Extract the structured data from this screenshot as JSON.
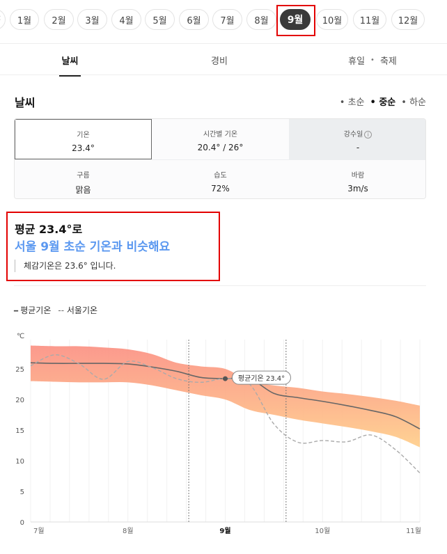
{
  "months": {
    "items": [
      "1월",
      "2월",
      "3월",
      "4월",
      "5월",
      "6월",
      "7월",
      "8월",
      "9월",
      "10월",
      "11월",
      "12월"
    ],
    "selected_index": 8,
    "prev_icon": "chevron-left-icon"
  },
  "tabs": {
    "weather": "날씨",
    "cost": "경비",
    "holiday": "휴일",
    "separator": "•",
    "festival": "축제"
  },
  "section": {
    "title": "날씨",
    "periods": [
      "• 초순",
      "• 중순",
      "• 하순"
    ],
    "selected_period": 1
  },
  "stats": {
    "temp": {
      "label": "기온",
      "value": "23.4°"
    },
    "hourly": {
      "label": "시간별 기온",
      "value": "20.4° / 26°"
    },
    "rain": {
      "label": "강수일",
      "value": "-"
    },
    "cloud": {
      "label": "구름",
      "value": "맑음"
    },
    "humidity": {
      "label": "습도",
      "value": "72%"
    },
    "wind": {
      "label": "바람",
      "value": "3m/s"
    }
  },
  "summary": {
    "headline": "평균 23.4°로",
    "comparison": "서울 9월 초순 기온과 비슷해요",
    "feels_like": "체감기온은 23.6° 입니다."
  },
  "legend": {
    "average": "평균기온",
    "seoul": "서울기온"
  },
  "chart_data": {
    "type": "line",
    "ylabel": "℃",
    "ylim": [
      0,
      30
    ],
    "yticks": [
      0,
      5,
      10,
      15,
      20,
      25
    ],
    "x_tick_labels": [
      "7월",
      "8월",
      "9월",
      "10월",
      "11월"
    ],
    "x": [
      0,
      0.5,
      1,
      1.5,
      2,
      2.5,
      3,
      3.5,
      4,
      4.5,
      5,
      5.5,
      6,
      6.5,
      7,
      7.5,
      8
    ],
    "series": [
      {
        "name": "평균기온",
        "style": "solid",
        "color": "#666666",
        "values": [
          26,
          25.9,
          25.9,
          25.9,
          25.8,
          25.3,
          24.6,
          23.6,
          23.4,
          23.4,
          21,
          20.3,
          19.7,
          19,
          18.2,
          17.2,
          15.2
        ]
      },
      {
        "name": "서울기온",
        "style": "dashed",
        "color": "#aaaaaa",
        "values": [
          25.5,
          27.3,
          25.8,
          23.3,
          26.2,
          25.2,
          23.4,
          22.8,
          23.4,
          22.5,
          16,
          13,
          13.3,
          13.1,
          14.2,
          11.8,
          8
        ]
      },
      {
        "name": "최고기온",
        "style": "band-upper",
        "values": [
          28.8,
          28.7,
          28.7,
          28.5,
          28.2,
          27.4,
          26,
          25.4,
          25,
          23,
          22.3,
          21.9,
          21.3,
          20.9,
          20.4,
          19.8,
          19
        ]
      },
      {
        "name": "최저기온",
        "style": "band-lower",
        "values": [
          23,
          22.9,
          22.8,
          22.8,
          22.8,
          22.3,
          21.5,
          20.7,
          20,
          18.3,
          17.5,
          16.7,
          16.1,
          15.5,
          14.8,
          13.9,
          12.2
        ]
      }
    ],
    "annotation": {
      "text": "평균기온 23.4°",
      "x": 4,
      "y": 23.4
    },
    "dotted_markers_x": [
      3.25,
      5.25
    ],
    "band_colors": {
      "top": "#fb9487",
      "bottom": "#ffd08e"
    },
    "grid": true
  }
}
